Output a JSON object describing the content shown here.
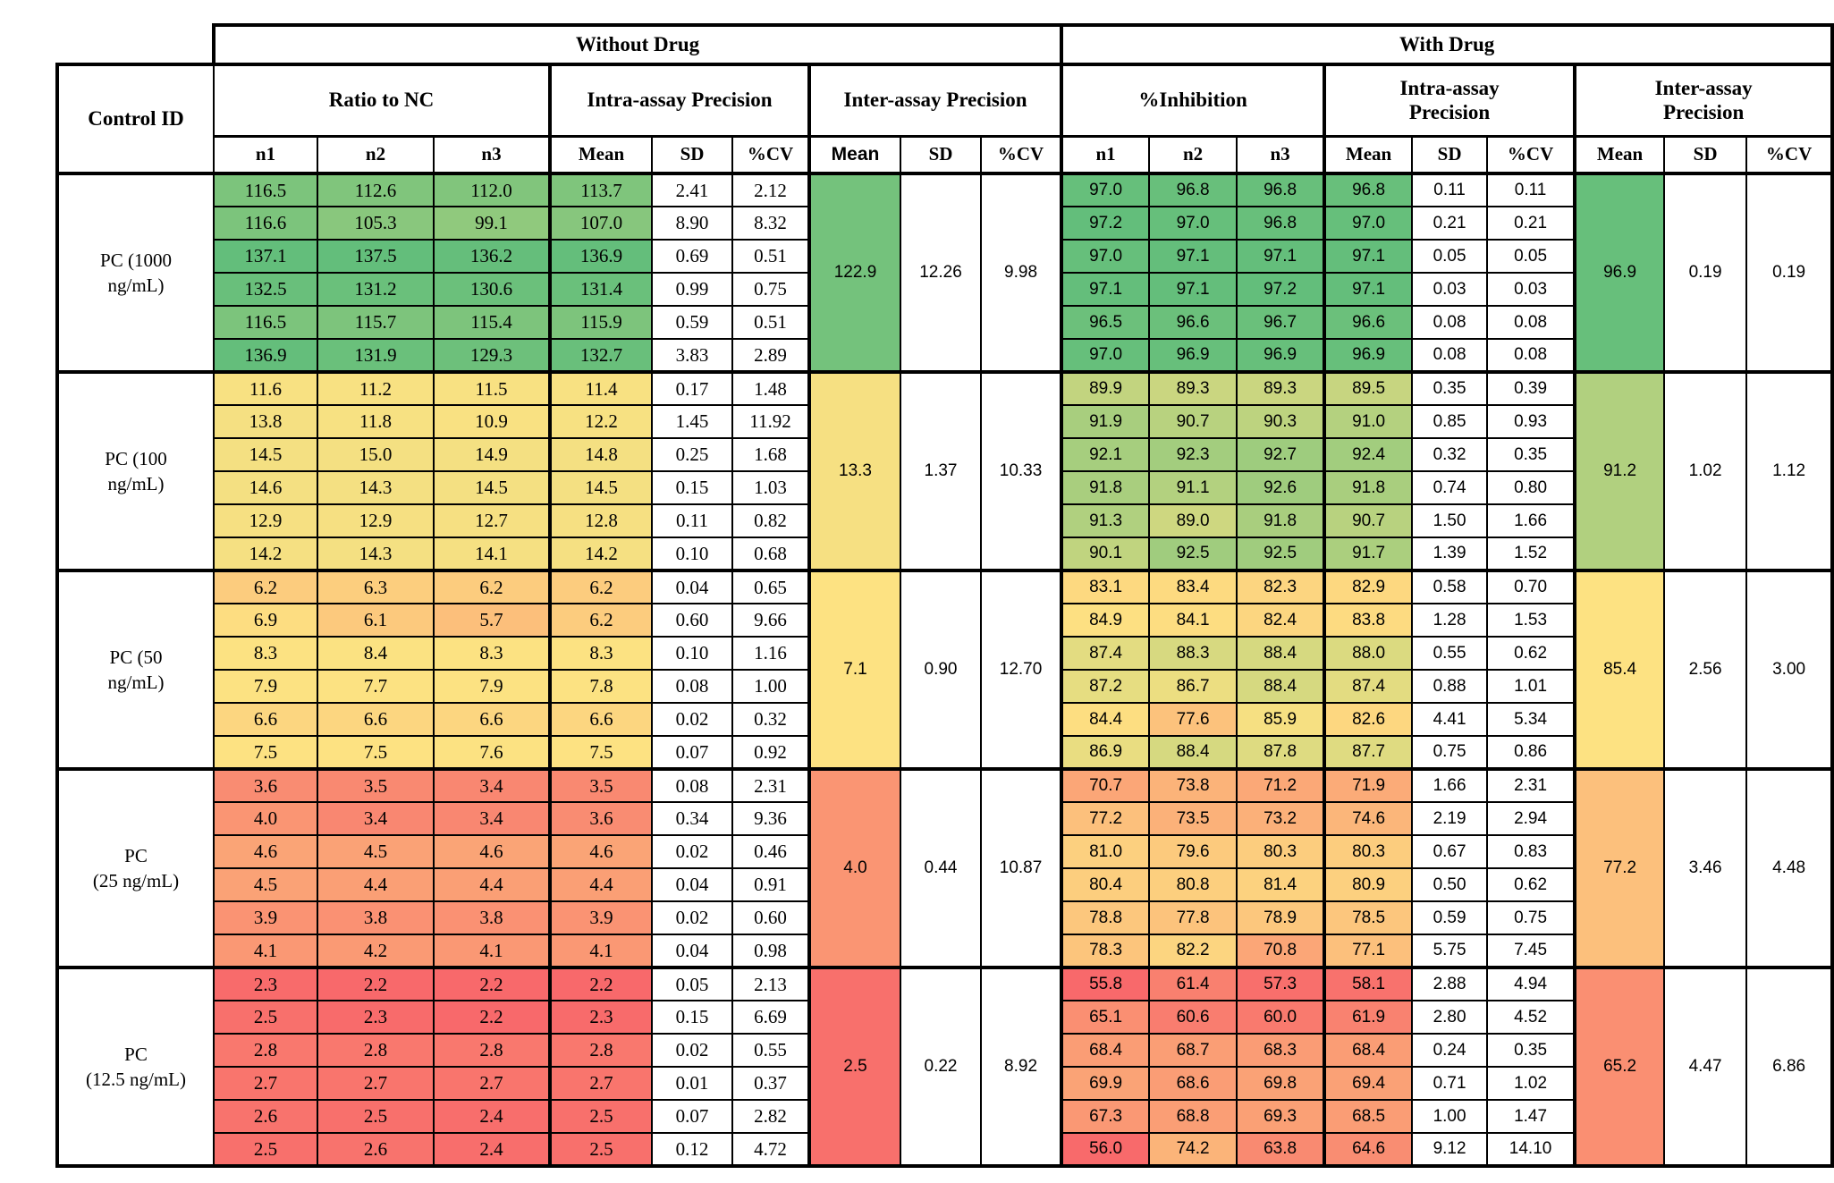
{
  "header": {
    "without_drug": "Without Drug",
    "with_drug": "With Drug",
    "control_id": "Control ID",
    "ratio_to_nc": "Ratio to NC",
    "intra_assay": "Intra-assay Precision",
    "inter_assay": "Inter-assay Precision",
    "pct_inhibition": "%Inhibition",
    "intra_assay_wrap": "Intra-assay\nPrecision",
    "inter_assay_wrap": "Inter-assay\nPrecision",
    "sub": [
      "n1",
      "n2",
      "n3",
      "Mean",
      "SD",
      "%CV",
      "Mean",
      "SD",
      "%CV",
      "n1",
      "n2",
      "n3",
      "Mean",
      "SD",
      "%CV",
      "Mean",
      "SD",
      "%CV"
    ]
  },
  "color_scales": {
    "ratio": {
      "min": 2.2,
      "mid": 7.1,
      "max": 137.5,
      "min_color": "#F8696B",
      "mid_color": "#FDE282",
      "max_color": "#63BE7B"
    },
    "inhibition": {
      "min": 55.8,
      "mid": 85.4,
      "max": 97.2,
      "min_color": "#F8696B",
      "mid_color": "#FDE282",
      "max_color": "#63BE7B"
    }
  },
  "groups": [
    {
      "control_id": "PC (1000\nng/mL)",
      "without": {
        "rows": [
          [
            "116.5",
            "112.6",
            "112.0",
            "113.7",
            "2.41",
            "2.12"
          ],
          [
            "116.6",
            "105.3",
            "99.1",
            "107.0",
            "8.90",
            "8.32"
          ],
          [
            "137.1",
            "137.5",
            "136.2",
            "136.9",
            "0.69",
            "0.51"
          ],
          [
            "132.5",
            "131.2",
            "130.6",
            "131.4",
            "0.99",
            "0.75"
          ],
          [
            "116.5",
            "115.7",
            "115.4",
            "115.9",
            "0.59",
            "0.51"
          ],
          [
            "136.9",
            "131.9",
            "129.3",
            "132.7",
            "3.83",
            "2.89"
          ]
        ],
        "inter": [
          "122.9",
          "12.26",
          "9.98"
        ]
      },
      "with_drug": {
        "rows": [
          [
            "97.0",
            "96.8",
            "96.8",
            "96.8",
            "0.11",
            "0.11"
          ],
          [
            "97.2",
            "97.0",
            "96.8",
            "97.0",
            "0.21",
            "0.21"
          ],
          [
            "97.0",
            "97.1",
            "97.1",
            "97.1",
            "0.05",
            "0.05"
          ],
          [
            "97.1",
            "97.1",
            "97.2",
            "97.1",
            "0.03",
            "0.03"
          ],
          [
            "96.5",
            "96.6",
            "96.7",
            "96.6",
            "0.08",
            "0.08"
          ],
          [
            "97.0",
            "96.9",
            "96.9",
            "96.9",
            "0.08",
            "0.08"
          ]
        ],
        "inter": [
          "96.9",
          "0.19",
          "0.19"
        ]
      }
    },
    {
      "control_id": "PC (100\nng/mL)",
      "without": {
        "rows": [
          [
            "11.6",
            "11.2",
            "11.5",
            "11.4",
            "0.17",
            "1.48"
          ],
          [
            "13.8",
            "11.8",
            "10.9",
            "12.2",
            "1.45",
            "11.92"
          ],
          [
            "14.5",
            "15.0",
            "14.9",
            "14.8",
            "0.25",
            "1.68"
          ],
          [
            "14.6",
            "14.3",
            "14.5",
            "14.5",
            "0.15",
            "1.03"
          ],
          [
            "12.9",
            "12.9",
            "12.7",
            "12.8",
            "0.11",
            "0.82"
          ],
          [
            "14.2",
            "14.3",
            "14.1",
            "14.2",
            "0.10",
            "0.68"
          ]
        ],
        "inter": [
          "13.3",
          "1.37",
          "10.33"
        ]
      },
      "with_drug": {
        "rows": [
          [
            "89.9",
            "89.3",
            "89.3",
            "89.5",
            "0.35",
            "0.39"
          ],
          [
            "91.9",
            "90.7",
            "90.3",
            "91.0",
            "0.85",
            "0.93"
          ],
          [
            "92.1",
            "92.3",
            "92.7",
            "92.4",
            "0.32",
            "0.35"
          ],
          [
            "91.8",
            "91.1",
            "92.6",
            "91.8",
            "0.74",
            "0.80"
          ],
          [
            "91.3",
            "89.0",
            "91.8",
            "90.7",
            "1.50",
            "1.66"
          ],
          [
            "90.1",
            "92.5",
            "92.5",
            "91.7",
            "1.39",
            "1.52"
          ]
        ],
        "inter": [
          "91.2",
          "1.02",
          "1.12"
        ]
      }
    },
    {
      "control_id": "PC (50\nng/mL)",
      "without": {
        "rows": [
          [
            "6.2",
            "6.3",
            "6.2",
            "6.2",
            "0.04",
            "0.65"
          ],
          [
            "6.9",
            "6.1",
            "5.7",
            "6.2",
            "0.60",
            "9.66"
          ],
          [
            "8.3",
            "8.4",
            "8.3",
            "8.3",
            "0.10",
            "1.16"
          ],
          [
            "7.9",
            "7.7",
            "7.9",
            "7.8",
            "0.08",
            "1.00"
          ],
          [
            "6.6",
            "6.6",
            "6.6",
            "6.6",
            "0.02",
            "0.32"
          ],
          [
            "7.5",
            "7.5",
            "7.6",
            "7.5",
            "0.07",
            "0.92"
          ]
        ],
        "inter": [
          "7.1",
          "0.90",
          "12.70"
        ]
      },
      "with_drug": {
        "rows": [
          [
            "83.1",
            "83.4",
            "82.3",
            "82.9",
            "0.58",
            "0.70"
          ],
          [
            "84.9",
            "84.1",
            "82.4",
            "83.8",
            "1.28",
            "1.53"
          ],
          [
            "87.4",
            "88.3",
            "88.4",
            "88.0",
            "0.55",
            "0.62"
          ],
          [
            "87.2",
            "86.7",
            "88.4",
            "87.4",
            "0.88",
            "1.01"
          ],
          [
            "84.4",
            "77.6",
            "85.9",
            "82.6",
            "4.41",
            "5.34"
          ],
          [
            "86.9",
            "88.4",
            "87.8",
            "87.7",
            "0.75",
            "0.86"
          ]
        ],
        "inter": [
          "85.4",
          "2.56",
          "3.00"
        ]
      }
    },
    {
      "control_id": "PC\n(25 ng/mL)",
      "without": {
        "rows": [
          [
            "3.6",
            "3.5",
            "3.4",
            "3.5",
            "0.08",
            "2.31"
          ],
          [
            "4.0",
            "3.4",
            "3.4",
            "3.6",
            "0.34",
            "9.36"
          ],
          [
            "4.6",
            "4.5",
            "4.6",
            "4.6",
            "0.02",
            "0.46"
          ],
          [
            "4.5",
            "4.4",
            "4.4",
            "4.4",
            "0.04",
            "0.91"
          ],
          [
            "3.9",
            "3.8",
            "3.8",
            "3.9",
            "0.02",
            "0.60"
          ],
          [
            "4.1",
            "4.2",
            "4.1",
            "4.1",
            "0.04",
            "0.98"
          ]
        ],
        "inter": [
          "4.0",
          "0.44",
          "10.87"
        ]
      },
      "with_drug": {
        "rows": [
          [
            "70.7",
            "73.8",
            "71.2",
            "71.9",
            "1.66",
            "2.31"
          ],
          [
            "77.2",
            "73.5",
            "73.2",
            "74.6",
            "2.19",
            "2.94"
          ],
          [
            "81.0",
            "79.6",
            "80.3",
            "80.3",
            "0.67",
            "0.83"
          ],
          [
            "80.4",
            "80.8",
            "81.4",
            "80.9",
            "0.50",
            "0.62"
          ],
          [
            "78.8",
            "77.8",
            "78.9",
            "78.5",
            "0.59",
            "0.75"
          ],
          [
            "78.3",
            "82.2",
            "70.8",
            "77.1",
            "5.75",
            "7.45"
          ]
        ],
        "inter": [
          "77.2",
          "3.46",
          "4.48"
        ]
      }
    },
    {
      "control_id": "PC\n(12.5 ng/mL)",
      "without": {
        "rows": [
          [
            "2.3",
            "2.2",
            "2.2",
            "2.2",
            "0.05",
            "2.13"
          ],
          [
            "2.5",
            "2.3",
            "2.2",
            "2.3",
            "0.15",
            "6.69"
          ],
          [
            "2.8",
            "2.8",
            "2.8",
            "2.8",
            "0.02",
            "0.55"
          ],
          [
            "2.7",
            "2.7",
            "2.7",
            "2.7",
            "0.01",
            "0.37"
          ],
          [
            "2.6",
            "2.5",
            "2.4",
            "2.5",
            "0.07",
            "2.82"
          ],
          [
            "2.5",
            "2.6",
            "2.4",
            "2.5",
            "0.12",
            "4.72"
          ]
        ],
        "inter": [
          "2.5",
          "0.22",
          "8.92"
        ]
      },
      "with_drug": {
        "rows": [
          [
            "55.8",
            "61.4",
            "57.3",
            "58.1",
            "2.88",
            "4.94"
          ],
          [
            "65.1",
            "60.6",
            "60.0",
            "61.9",
            "2.80",
            "4.52"
          ],
          [
            "68.4",
            "68.7",
            "68.3",
            "68.4",
            "0.24",
            "0.35"
          ],
          [
            "69.9",
            "68.6",
            "69.8",
            "69.4",
            "0.71",
            "1.02"
          ],
          [
            "67.3",
            "68.8",
            "69.3",
            "68.5",
            "1.00",
            "1.47"
          ],
          [
            "56.0",
            "74.2",
            "63.8",
            "64.6",
            "9.12",
            "14.10"
          ]
        ],
        "inter": [
          "65.2",
          "4.47",
          "6.86"
        ]
      }
    }
  ]
}
